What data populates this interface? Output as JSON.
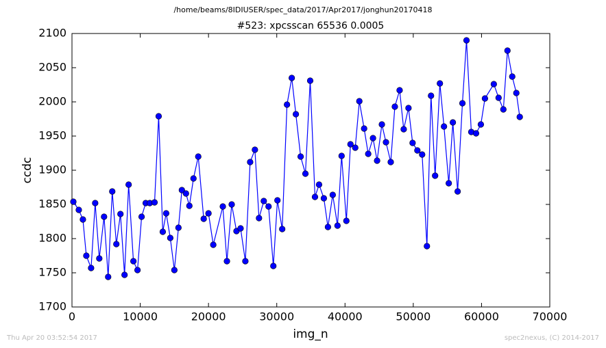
{
  "chart_data": {
    "type": "line",
    "suptitle": "/home/beams/8IDIUSER/spec_data/2017/Apr2017/jonghun20170418",
    "title": "#523: xpcsscan 65536 0.0005",
    "xlabel": "img_n",
    "ylabel": "ccdc",
    "annotations": [
      "Thu Apr 20 03:52:54 2017",
      "spec2nexus, (C) 2014-2017"
    ],
    "color": "#0000ff",
    "xlim": [
      0,
      70000
    ],
    "ylim": [
      1700,
      2100
    ],
    "xticks": [
      0,
      10000,
      20000,
      30000,
      40000,
      50000,
      60000,
      70000
    ],
    "yticks": [
      1700,
      1750,
      1800,
      1850,
      1900,
      1950,
      2000,
      2050,
      2100
    ],
    "x": [
      200,
      1000,
      1600,
      2100,
      2800,
      3400,
      4000,
      4700,
      5300,
      5900,
      6500,
      7100,
      7700,
      8300,
      9000,
      9600,
      10200,
      10800,
      11400,
      12100,
      12700,
      13300,
      13800,
      14400,
      15000,
      15600,
      16100,
      16700,
      17200,
      17800,
      18500,
      19300,
      20000,
      20700,
      22100,
      22700,
      23400,
      24100,
      24700,
      25400,
      26100,
      26800,
      27400,
      28100,
      28800,
      29500,
      30100,
      30800,
      31500,
      32200,
      32800,
      33500,
      34200,
      34900,
      35600,
      36200,
      36900,
      37500,
      38200,
      38900,
      39500,
      40200,
      40800,
      41500,
      42100,
      42800,
      43400,
      44100,
      44700,
      45400,
      46000,
      46700,
      47300,
      48000,
      48600,
      49300,
      49900,
      50600,
      51300,
      52000,
      52600,
      53200,
      53900,
      54500,
      55200,
      55800,
      56500,
      57200,
      57800,
      58500,
      59200,
      59900,
      60500,
      61800,
      62500,
      63200,
      63800,
      64500,
      65100,
      65600
    ],
    "values": [
      1854,
      1842,
      1828,
      1775,
      1757,
      1852,
      1771,
      1832,
      1744,
      1869,
      1792,
      1836,
      1747,
      1879,
      1767,
      1754,
      1832,
      1852,
      1852,
      1853,
      1979,
      1810,
      1837,
      1801,
      1754,
      1816,
      1871,
      1866,
      1848,
      1888,
      1920,
      1829,
      1837,
      1791,
      1847,
      1767,
      1850,
      1811,
      1815,
      1767,
      1912,
      1930,
      1830,
      1855,
      1847,
      1760,
      1856,
      1814,
      1996,
      2035,
      1982,
      1920,
      1895,
      2031,
      1861,
      1879,
      1859,
      1817,
      1864,
      1819,
      1921,
      1826,
      1938,
      1933,
      2001,
      1961,
      1924,
      1947,
      1914,
      1967,
      1941,
      1912,
      1993,
      2017,
      1960,
      1991,
      1940,
      1929,
      1923,
      1789,
      2009,
      1892,
      2027,
      1964,
      1881,
      1970,
      1869,
      1998,
      2090,
      1956,
      1954,
      1967,
      2005,
      2026,
      2006,
      1989,
      2075,
      2037,
      2013,
      1978
    ]
  }
}
